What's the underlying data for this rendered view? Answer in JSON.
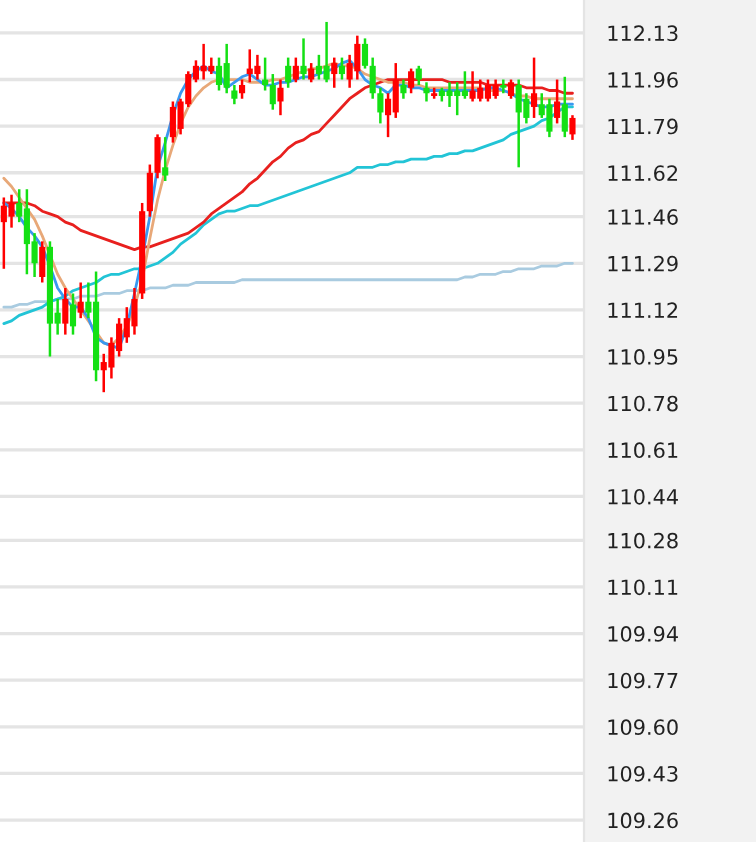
{
  "chart_data": {
    "type": "candlestick",
    "categories": [
      null,
      null,
      null,
      null,
      null,
      null,
      null,
      null,
      null,
      null,
      null,
      null,
      null,
      null,
      null,
      null,
      null,
      null,
      null,
      null,
      null,
      null,
      null,
      null,
      null,
      null,
      null,
      null,
      null,
      null,
      null,
      null,
      null,
      null,
      null,
      null,
      null,
      null,
      null,
      null,
      null,
      null,
      null,
      null,
      null,
      null,
      null,
      null,
      null,
      null,
      null,
      null,
      null,
      null,
      null,
      null,
      null,
      null,
      null,
      null,
      null,
      null,
      null,
      null,
      null,
      null,
      null,
      null,
      null,
      null,
      null,
      null,
      null,
      null,
      null
    ],
    "ohlc": [
      [
        111.44,
        111.53,
        111.27,
        111.5
      ],
      [
        111.46,
        111.54,
        111.42,
        111.51
      ],
      [
        111.51,
        111.56,
        111.44,
        111.46
      ],
      [
        111.49,
        111.56,
        111.25,
        111.36
      ],
      [
        111.37,
        111.4,
        111.24,
        111.29
      ],
      [
        111.24,
        111.37,
        111.22,
        111.35
      ],
      [
        111.35,
        111.37,
        110.95,
        111.07
      ],
      [
        111.11,
        111.16,
        111.03,
        111.07
      ],
      [
        111.07,
        111.2,
        111.03,
        111.16
      ],
      [
        111.14,
        111.18,
        111.03,
        111.06
      ],
      [
        111.11,
        111.22,
        111.09,
        111.15
      ],
      [
        111.15,
        111.22,
        111.09,
        111.11
      ],
      [
        111.15,
        111.26,
        110.86,
        110.9
      ],
      [
        110.9,
        110.96,
        110.82,
        110.93
      ],
      [
        110.91,
        111.02,
        110.87,
        111.0
      ],
      [
        110.97,
        111.09,
        110.95,
        111.07
      ],
      [
        111.02,
        111.13,
        111.0,
        111.09
      ],
      [
        111.06,
        111.2,
        111.03,
        111.16
      ],
      [
        111.18,
        111.51,
        111.16,
        111.48
      ],
      [
        111.48,
        111.65,
        111.46,
        111.62
      ],
      [
        111.62,
        111.76,
        111.6,
        111.75
      ],
      [
        111.64,
        111.75,
        111.59,
        111.61
      ],
      [
        111.75,
        111.88,
        111.73,
        111.86
      ],
      [
        111.78,
        111.89,
        111.76,
        111.88
      ],
      [
        111.87,
        111.99,
        111.86,
        111.98
      ],
      [
        111.96,
        112.03,
        111.95,
        112.01
      ],
      [
        111.99,
        112.09,
        111.96,
        112.01
      ],
      [
        111.99,
        112.04,
        111.98,
        112.01
      ],
      [
        112.01,
        112.04,
        111.92,
        111.94
      ],
      [
        112.02,
        112.09,
        111.91,
        111.93
      ],
      [
        111.92,
        111.94,
        111.87,
        111.89
      ],
      [
        111.91,
        111.96,
        111.89,
        111.94
      ],
      [
        111.98,
        112.07,
        111.95,
        112.0
      ],
      [
        111.98,
        112.05,
        111.96,
        112.01
      ],
      [
        111.96,
        112.04,
        111.92,
        111.94
      ],
      [
        111.94,
        111.98,
        111.85,
        111.87
      ],
      [
        111.88,
        111.96,
        111.83,
        111.93
      ],
      [
        112.01,
        112.04,
        111.93,
        111.95
      ],
      [
        111.96,
        112.04,
        111.95,
        112.01
      ],
      [
        112.01,
        112.11,
        111.96,
        111.98
      ],
      [
        111.96,
        112.02,
        111.95,
        112.0
      ],
      [
        112.01,
        112.05,
        111.96,
        111.98
      ],
      [
        112.01,
        112.17,
        111.95,
        111.96
      ],
      [
        111.98,
        112.04,
        111.93,
        112.02
      ],
      [
        112.01,
        112.04,
        111.96,
        111.98
      ],
      [
        111.96,
        112.05,
        111.93,
        112.02
      ],
      [
        111.99,
        112.12,
        111.96,
        112.09
      ],
      [
        112.09,
        112.11,
        112.0,
        112.01
      ],
      [
        112.01,
        112.04,
        111.89,
        111.91
      ],
      [
        111.91,
        111.93,
        111.8,
        111.84
      ],
      [
        111.83,
        111.91,
        111.75,
        111.89
      ],
      [
        111.84,
        112.02,
        111.82,
        111.96
      ],
      [
        111.94,
        111.96,
        111.89,
        111.91
      ],
      [
        111.93,
        112.0,
        111.91,
        111.99
      ],
      [
        112.0,
        112.01,
        111.94,
        111.96
      ],
      [
        111.93,
        111.95,
        111.88,
        111.91
      ],
      [
        111.9,
        111.93,
        111.89,
        111.91
      ],
      [
        111.92,
        111.93,
        111.88,
        111.9
      ],
      [
        111.92,
        111.95,
        111.86,
        111.9
      ],
      [
        111.92,
        111.95,
        111.83,
        111.9
      ],
      [
        111.92,
        111.99,
        111.89,
        111.9
      ],
      [
        111.89,
        111.99,
        111.88,
        111.92
      ],
      [
        111.89,
        111.96,
        111.88,
        111.93
      ],
      [
        111.89,
        111.96,
        111.88,
        111.94
      ],
      [
        111.9,
        111.96,
        111.89,
        111.94
      ],
      [
        111.94,
        111.96,
        111.91,
        111.93
      ],
      [
        111.9,
        111.96,
        111.89,
        111.95
      ],
      [
        111.94,
        111.96,
        111.64,
        111.84
      ],
      [
        111.89,
        111.91,
        111.8,
        111.82
      ],
      [
        111.86,
        112.04,
        111.82,
        111.91
      ],
      [
        111.87,
        111.91,
        111.82,
        111.83
      ],
      [
        111.87,
        111.89,
        111.75,
        111.77
      ],
      [
        111.82,
        111.96,
        111.8,
        111.88
      ],
      [
        111.87,
        111.97,
        111.75,
        111.77
      ],
      [
        111.76,
        111.83,
        111.74,
        111.82
      ]
    ],
    "colors": [
      "#ff0000",
      "#ff0000",
      "#14e014",
      "#14e014",
      "#14e014",
      "#ff0000",
      "#14e014",
      "#14e014",
      "#ff0000",
      "#14e014",
      "#ff0000",
      "#14e014",
      "#14e014",
      "#ff0000",
      "#ff0000",
      "#ff0000",
      "#ff0000",
      "#ff0000",
      "#ff0000",
      "#ff0000",
      "#ff0000",
      "#14e014",
      "#ff0000",
      "#ff0000",
      "#ff0000",
      "#ff0000",
      "#ff0000",
      "#ff0000",
      "#14e014",
      "#14e014",
      "#14e014",
      "#ff0000",
      "#ff0000",
      "#ff0000",
      "#14e014",
      "#14e014",
      "#ff0000",
      "#14e014",
      "#ff0000",
      "#14e014",
      "#ff0000",
      "#14e014",
      "#14e014",
      "#ff0000",
      "#14e014",
      "#ff0000",
      "#ff0000",
      "#14e014",
      "#14e014",
      "#14e014",
      "#ff0000",
      "#ff0000",
      "#14e014",
      "#ff0000",
      "#14e014",
      "#14e014",
      "#ff0000",
      "#14e014",
      "#14e014",
      "#14e014",
      "#14e014",
      "#ff0000",
      "#ff0000",
      "#ff0000",
      "#ff0000",
      "#14e014",
      "#ff0000",
      "#14e014",
      "#14e014",
      "#ff0000",
      "#14e014",
      "#14e014",
      "#ff0000",
      "#14e014",
      "#ff0000"
    ],
    "series": [
      {
        "type": "line",
        "color": "#a9cbe0",
        "values": [
          111.13,
          111.13,
          111.14,
          111.14,
          111.15,
          111.15,
          111.15,
          111.16,
          111.16,
          111.16,
          111.17,
          111.17,
          111.17,
          111.18,
          111.18,
          111.18,
          111.19,
          111.19,
          111.19,
          111.2,
          111.2,
          111.2,
          111.21,
          111.21,
          111.21,
          111.22,
          111.22,
          111.22,
          111.22,
          111.22,
          111.22,
          111.23,
          111.23,
          111.23,
          111.23,
          111.23,
          111.23,
          111.23,
          111.23,
          111.23,
          111.23,
          111.23,
          111.23,
          111.23,
          111.23,
          111.23,
          111.23,
          111.23,
          111.23,
          111.23,
          111.23,
          111.23,
          111.23,
          111.23,
          111.23,
          111.23,
          111.23,
          111.23,
          111.23,
          111.23,
          111.24,
          111.24,
          111.25,
          111.25,
          111.25,
          111.26,
          111.26,
          111.27,
          111.27,
          111.27,
          111.28,
          111.28,
          111.28,
          111.29,
          111.29
        ]
      },
      {
        "type": "line",
        "color": "#22c4d6",
        "values": [
          111.07,
          111.08,
          111.1,
          111.11,
          111.12,
          111.13,
          111.15,
          111.16,
          111.17,
          111.19,
          111.2,
          111.21,
          111.22,
          111.24,
          111.25,
          111.25,
          111.26,
          111.27,
          111.27,
          111.28,
          111.29,
          111.31,
          111.33,
          111.36,
          111.38,
          111.4,
          111.43,
          111.45,
          111.47,
          111.48,
          111.48,
          111.49,
          111.5,
          111.5,
          111.51,
          111.52,
          111.53,
          111.54,
          111.55,
          111.56,
          111.57,
          111.58,
          111.59,
          111.6,
          111.61,
          111.62,
          111.64,
          111.64,
          111.64,
          111.65,
          111.65,
          111.66,
          111.66,
          111.67,
          111.67,
          111.67,
          111.68,
          111.68,
          111.69,
          111.69,
          111.7,
          111.7,
          111.71,
          111.72,
          111.73,
          111.74,
          111.76,
          111.77,
          111.78,
          111.79,
          111.81,
          111.82,
          111.84,
          111.86,
          111.86
        ]
      },
      {
        "type": "line",
        "color": "#e8201e",
        "values": [
          111.51,
          111.51,
          111.51,
          111.51,
          111.5,
          111.48,
          111.47,
          111.46,
          111.44,
          111.43,
          111.41,
          111.4,
          111.39,
          111.38,
          111.37,
          111.36,
          111.35,
          111.34,
          111.35,
          111.35,
          111.36,
          111.37,
          111.38,
          111.39,
          111.4,
          111.42,
          111.44,
          111.47,
          111.49,
          111.51,
          111.53,
          111.55,
          111.58,
          111.6,
          111.63,
          111.66,
          111.68,
          111.71,
          111.73,
          111.74,
          111.76,
          111.77,
          111.8,
          111.83,
          111.86,
          111.89,
          111.91,
          111.93,
          111.94,
          111.95,
          111.96,
          111.96,
          111.96,
          111.96,
          111.96,
          111.96,
          111.96,
          111.96,
          111.95,
          111.95,
          111.95,
          111.95,
          111.95,
          111.94,
          111.94,
          111.94,
          111.94,
          111.94,
          111.93,
          111.93,
          111.93,
          111.92,
          111.92,
          111.91,
          111.91
        ]
      },
      {
        "type": "line",
        "color": "#e8a878",
        "values": [
          111.6,
          111.57,
          111.53,
          111.49,
          111.45,
          111.39,
          111.32,
          111.25,
          111.2,
          111.16,
          111.12,
          111.08,
          111.04,
          111.0,
          110.99,
          111.02,
          111.06,
          111.13,
          111.23,
          111.38,
          111.52,
          111.63,
          111.72,
          111.8,
          111.86,
          111.9,
          111.93,
          111.95,
          111.96,
          111.96,
          111.96,
          111.96,
          111.95,
          111.95,
          111.95,
          111.96,
          111.96,
          111.97,
          111.98,
          111.99,
          112.0,
          112.0,
          112.01,
          112.02,
          112.01,
          112.01,
          112.0,
          111.98,
          111.97,
          111.96,
          111.95,
          111.95,
          111.95,
          111.94,
          111.94,
          111.93,
          111.93,
          111.93,
          111.93,
          111.93,
          111.93,
          111.93,
          111.93,
          111.92,
          111.92,
          111.92,
          111.91,
          111.9,
          111.9,
          111.89,
          111.89,
          111.89,
          111.89,
          111.89,
          111.89
        ]
      },
      {
        "type": "line",
        "color": "#3a98f0",
        "values": [
          111.51,
          111.49,
          111.46,
          111.42,
          111.39,
          111.35,
          111.28,
          111.2,
          111.16,
          111.13,
          111.13,
          111.09,
          111.02,
          111.0,
          110.99,
          110.98,
          111.06,
          111.18,
          111.31,
          111.46,
          111.64,
          111.73,
          111.83,
          111.91,
          111.96,
          111.99,
          112.01,
          111.99,
          111.98,
          111.93,
          111.95,
          111.97,
          111.98,
          111.96,
          111.94,
          111.94,
          111.95,
          111.95,
          111.96,
          111.97,
          111.97,
          111.98,
          111.99,
          112.0,
          112.02,
          112.03,
          112.0,
          111.96,
          111.94,
          111.93,
          111.91,
          111.94,
          111.94,
          111.93,
          111.93,
          111.92,
          111.92,
          111.92,
          111.92,
          111.92,
          111.92,
          111.92,
          111.92,
          111.93,
          111.93,
          111.92,
          111.91,
          111.89,
          111.88,
          111.87,
          111.86,
          111.86,
          111.87,
          111.87,
          111.87
        ]
      }
    ],
    "ylim": [
      109.18,
      112.25
    ],
    "yticks": [
      112.13,
      111.96,
      111.79,
      111.62,
      111.46,
      111.29,
      111.12,
      110.95,
      110.78,
      110.61,
      110.44,
      110.28,
      110.11,
      109.94,
      109.77,
      {
        "value": 109.6,
        "label": "109.60"
      },
      109.43,
      109.26
    ],
    "grid": "y",
    "tick_labels": "y"
  }
}
